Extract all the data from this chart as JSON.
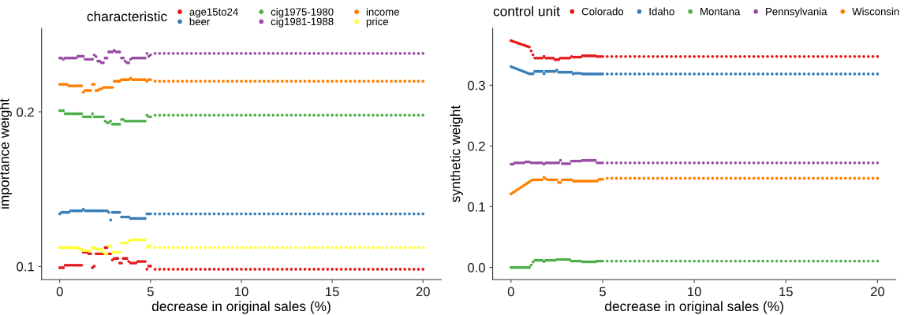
{
  "chart_data": [
    {
      "type": "scatter",
      "xlabel": "decrease in original sales (%)",
      "ylabel": "importance weight",
      "legend_title": "characteristic",
      "legend": "top",
      "marker": "circle",
      "xlim": [
        -1,
        21
      ],
      "ylim": [
        0.0915,
        0.254
      ],
      "xticks": [
        0,
        5,
        10,
        15,
        20
      ],
      "yticks": [
        0.1,
        0.2
      ],
      "x": [
        0,
        0.1,
        0.2,
        0.3,
        0.4,
        0.5,
        0.6,
        0.7,
        0.8,
        0.9,
        1,
        1.1,
        1.2,
        1.3,
        1.4,
        1.5,
        1.6,
        1.7,
        1.8,
        1.9,
        2,
        2.1,
        2.2,
        2.3,
        2.4,
        2.5,
        2.6,
        2.7,
        2.8,
        2.9,
        3,
        3.1,
        3.2,
        3.3,
        3.4,
        3.5,
        3.6,
        3.7,
        3.8,
        3.9,
        4,
        4.1,
        4.2,
        4.3,
        4.4,
        4.5,
        4.6,
        4.7,
        4.8,
        4.9,
        5,
        5.25,
        5.5,
        5.75,
        6,
        6.25,
        6.5,
        6.75,
        7,
        7.25,
        7.5,
        7.75,
        8,
        8.25,
        8.5,
        8.75,
        9,
        9.25,
        9.5,
        9.75,
        10,
        10.25,
        10.5,
        10.75,
        11,
        11.25,
        11.5,
        11.75,
        12,
        12.25,
        12.5,
        12.75,
        13,
        13.25,
        13.5,
        13.75,
        14,
        14.25,
        14.5,
        14.75,
        15,
        15.25,
        15.5,
        15.75,
        16,
        16.25,
        16.5,
        16.75,
        17,
        17.25,
        17.5,
        17.75,
        18,
        18.25,
        18.5,
        18.75,
        19,
        19.25,
        19.5,
        19.75,
        20
      ],
      "series": [
        {
          "name": "age15to24",
          "color": "#e41a1c",
          "values": [
            0.0992,
            0.0992,
            0.0992,
            0.1008,
            0.1008,
            0.1008,
            0.1008,
            0.1008,
            0.1008,
            0.1008,
            0.1008,
            0.1008,
            0.1008,
            0.1092,
            0.1092,
            0.1092,
            0.1082,
            0.1082,
            0.0992,
            0.1002,
            0.1082,
            0.1082,
            0.1082,
            0.1082,
            0.1082,
            0.1122,
            0.1122,
            0.1082,
            0.1082,
            0.1042,
            0.1052,
            0.1052,
            0.1052,
            0.1022,
            0.1022,
            0.1052,
            0.1052,
            0.1052,
            0.1032,
            0.1022,
            0.1022,
            0.1022,
            0.1022,
            0.1032,
            0.1032,
            0.1032,
            0.1032,
            0.1032,
            0.0982,
            0.1002,
            0.1002,
            0.0982,
            0.0982,
            0.0982,
            0.0982,
            0.0982,
            0.0982,
            0.0982,
            0.0982,
            0.0982,
            0.0982,
            0.0982,
            0.0982,
            0.0982,
            0.0982,
            0.0982,
            0.0982,
            0.0982,
            0.0982,
            0.0982,
            0.0982,
            0.0982,
            0.0982,
            0.0982,
            0.0982,
            0.0982,
            0.0982,
            0.0982,
            0.0982,
            0.0982,
            0.0982,
            0.0982,
            0.0982,
            0.0982,
            0.0982,
            0.0982,
            0.0982,
            0.0982,
            0.0982,
            0.0982,
            0.0982,
            0.0982,
            0.0982,
            0.0982,
            0.0982,
            0.0982,
            0.0982,
            0.0982,
            0.0982,
            0.0982,
            0.0982,
            0.0982,
            0.0982,
            0.0982,
            0.0982,
            0.0982,
            0.0982,
            0.0982,
            0.0982,
            0.0982,
            0.0982
          ]
        },
        {
          "name": "beer",
          "color": "#377eb8",
          "values": [
            0.134,
            0.135,
            0.135,
            0.135,
            0.135,
            0.135,
            0.136,
            0.136,
            0.136,
            0.136,
            0.136,
            0.136,
            0.136,
            0.137,
            0.136,
            0.136,
            0.136,
            0.136,
            0.136,
            0.136,
            0.136,
            0.136,
            0.136,
            0.136,
            0.136,
            0.136,
            0.136,
            0.135,
            0.13,
            0.135,
            0.135,
            0.135,
            0.135,
            0.135,
            0.132,
            0.132,
            0.132,
            0.132,
            0.132,
            0.131,
            0.131,
            0.131,
            0.131,
            0.131,
            0.131,
            0.131,
            0.131,
            0.131,
            0.134,
            0.134,
            0.134,
            0.134,
            0.134,
            0.134,
            0.134,
            0.134,
            0.134,
            0.134,
            0.134,
            0.134,
            0.134,
            0.134,
            0.134,
            0.134,
            0.134,
            0.134,
            0.134,
            0.134,
            0.134,
            0.134,
            0.134,
            0.134,
            0.134,
            0.134,
            0.134,
            0.134,
            0.134,
            0.134,
            0.134,
            0.134,
            0.134,
            0.134,
            0.134,
            0.134,
            0.134,
            0.134,
            0.134,
            0.134,
            0.134,
            0.134,
            0.134,
            0.134,
            0.134,
            0.134,
            0.134,
            0.134,
            0.134,
            0.134,
            0.134,
            0.134,
            0.134,
            0.134,
            0.134,
            0.134,
            0.134,
            0.134,
            0.134,
            0.134,
            0.134,
            0.134,
            0.134
          ]
        },
        {
          "name": "cig1975-1980",
          "color": "#4daf4a",
          "values": [
            0.2008,
            0.2008,
            0.2008,
            0.1988,
            0.1988,
            0.1988,
            0.1988,
            0.1988,
            0.1988,
            0.1988,
            0.1988,
            0.1988,
            0.1988,
            0.1968,
            0.1968,
            0.1968,
            0.1968,
            0.1968,
            0.1988,
            0.1968,
            0.1968,
            0.1968,
            0.1968,
            0.1968,
            0.1968,
            0.194,
            0.193,
            0.193,
            0.194,
            0.192,
            0.192,
            0.192,
            0.192,
            0.192,
            0.195,
            0.195,
            0.194,
            0.194,
            0.194,
            0.194,
            0.194,
            0.194,
            0.194,
            0.194,
            0.194,
            0.194,
            0.194,
            0.194,
            0.1978,
            0.1968,
            0.1968,
            0.1978,
            0.1978,
            0.1978,
            0.1978,
            0.1978,
            0.1978,
            0.1978,
            0.1978,
            0.1978,
            0.1978,
            0.1978,
            0.1978,
            0.1978,
            0.1978,
            0.1978,
            0.1978,
            0.1978,
            0.1978,
            0.1978,
            0.1978,
            0.1978,
            0.1978,
            0.1978,
            0.1978,
            0.1978,
            0.1978,
            0.1978,
            0.1978,
            0.1978,
            0.1978,
            0.1978,
            0.1978,
            0.1978,
            0.1978,
            0.1978,
            0.1978,
            0.1978,
            0.1978,
            0.1978,
            0.1978,
            0.1978,
            0.1978,
            0.1978,
            0.1978,
            0.1978,
            0.1978,
            0.1978,
            0.1978,
            0.1978,
            0.1978,
            0.1978,
            0.1978,
            0.1978,
            0.1978,
            0.1978,
            0.1978,
            0.1978,
            0.1978,
            0.1978,
            0.1978
          ]
        },
        {
          "name": "cig1981-1988",
          "color": "#984ea3",
          "values": [
            0.2348,
            0.2348,
            0.234,
            0.2348,
            0.2348,
            0.2348,
            0.2348,
            0.2348,
            0.2348,
            0.2348,
            0.236,
            0.236,
            0.236,
            0.236,
            0.234,
            0.234,
            0.234,
            0.234,
            0.234,
            0.2368,
            0.2357,
            0.2328,
            0.2328,
            0.2318,
            0.2318,
            0.2348,
            0.2348,
            0.2388,
            0.2388,
            0.2388,
            0.2398,
            0.2388,
            0.2388,
            0.2388,
            0.2348,
            0.2348,
            0.2328,
            0.2318,
            0.2318,
            0.234,
            0.2348,
            0.2348,
            0.2348,
            0.2348,
            0.2348,
            0.2348,
            0.2348,
            0.2348,
            0.2378,
            0.236,
            0.2368,
            0.2378,
            0.2378,
            0.2378,
            0.2378,
            0.2378,
            0.2378,
            0.2378,
            0.2378,
            0.2378,
            0.2378,
            0.2378,
            0.2378,
            0.2378,
            0.2378,
            0.2378,
            0.2378,
            0.2378,
            0.2378,
            0.2378,
            0.2378,
            0.2378,
            0.2378,
            0.2378,
            0.2378,
            0.2378,
            0.2378,
            0.2378,
            0.2378,
            0.2378,
            0.2378,
            0.2378,
            0.2378,
            0.2378,
            0.2378,
            0.2378,
            0.2378,
            0.2378,
            0.2378,
            0.2378,
            0.2378,
            0.2378,
            0.2378,
            0.2378,
            0.2378,
            0.2378,
            0.2378,
            0.2378,
            0.2378,
            0.2378,
            0.2378,
            0.2378,
            0.2378,
            0.2378,
            0.2378,
            0.2378,
            0.2378,
            0.2378,
            0.2378,
            0.2378,
            0.2378
          ]
        },
        {
          "name": "income",
          "color": "#ff7f00",
          "values": [
            0.2178,
            0.2178,
            0.2178,
            0.2178,
            0.2178,
            0.2168,
            0.2168,
            0.2168,
            0.2168,
            0.2168,
            0.2168,
            0.2168,
            0.2168,
            0.2127,
            0.2138,
            0.2138,
            0.2138,
            0.2138,
            0.2178,
            0.2178,
            0.2138,
            0.2138,
            0.2148,
            0.2148,
            0.2158,
            0.2158,
            0.2158,
            0.2158,
            0.2158,
            0.2158,
            0.2198,
            0.2198,
            0.2198,
            0.2198,
            0.2208,
            0.2208,
            0.2208,
            0.2208,
            0.2208,
            0.2218,
            0.2208,
            0.2208,
            0.2208,
            0.2208,
            0.2208,
            0.2208,
            0.2208,
            0.2208,
            0.2198,
            0.2208,
            0.2208,
            0.2198,
            0.2198,
            0.2198,
            0.2198,
            0.2198,
            0.2198,
            0.2198,
            0.2198,
            0.2198,
            0.2198,
            0.2198,
            0.2198,
            0.2198,
            0.2198,
            0.2198,
            0.2198,
            0.2198,
            0.2198,
            0.2198,
            0.2198,
            0.2198,
            0.2198,
            0.2198,
            0.2198,
            0.2198,
            0.2198,
            0.2198,
            0.2198,
            0.2198,
            0.2198,
            0.2198,
            0.2198,
            0.2198,
            0.2198,
            0.2198,
            0.2198,
            0.2198,
            0.2198,
            0.2198,
            0.2198,
            0.2198,
            0.2198,
            0.2198,
            0.2198,
            0.2198,
            0.2198,
            0.2198,
            0.2198,
            0.2198,
            0.2198,
            0.2198,
            0.2198,
            0.2198,
            0.2198,
            0.2198,
            0.2198,
            0.2198,
            0.2198,
            0.2198,
            0.2198
          ]
        },
        {
          "name": "price",
          "color": "#ffff33",
          "values": [
            0.1122,
            0.1122,
            0.1122,
            0.1122,
            0.1122,
            0.1122,
            0.1122,
            0.1122,
            0.1122,
            0.1122,
            0.1122,
            0.1112,
            0.1112,
            0.1102,
            0.1102,
            0.1102,
            0.1102,
            0.1102,
            0.1122,
            0.1122,
            0.1112,
            0.1112,
            0.1112,
            0.1112,
            0.1092,
            0.1082,
            0.1082,
            0.1132,
            0.1132,
            0.1092,
            0.1092,
            0.1092,
            0.1092,
            0.1092,
            0.1152,
            0.1152,
            0.1152,
            0.1152,
            0.1162,
            0.1172,
            0.1172,
            0.1172,
            0.1172,
            0.1172,
            0.1172,
            0.1172,
            0.1172,
            0.1172,
            0.1122,
            0.1132,
            0.1132,
            0.1122,
            0.1122,
            0.1122,
            0.1122,
            0.1122,
            0.1122,
            0.1122,
            0.1122,
            0.1122,
            0.1122,
            0.1122,
            0.1122,
            0.1122,
            0.1122,
            0.1122,
            0.1122,
            0.1122,
            0.1122,
            0.1122,
            0.1122,
            0.1122,
            0.1122,
            0.1122,
            0.1122,
            0.1122,
            0.1122,
            0.1122,
            0.1122,
            0.1122,
            0.1122,
            0.1122,
            0.1122,
            0.1122,
            0.1122,
            0.1122,
            0.1122,
            0.1122,
            0.1122,
            0.1122,
            0.1122,
            0.1122,
            0.1122,
            0.1122,
            0.1122,
            0.1122,
            0.1122,
            0.1122,
            0.1122,
            0.1122,
            0.1122,
            0.1122,
            0.1122,
            0.1122,
            0.1122,
            0.1122,
            0.1122,
            0.1122,
            0.1122,
            0.1122,
            0.1122
          ]
        }
      ]
    },
    {
      "type": "scatter",
      "xlabel": "decrease in original sales (%)",
      "ylabel": "synthetic weight",
      "legend_title": "control unit",
      "legend": "top",
      "marker": "circle",
      "xlim": [
        -1,
        21
      ],
      "ylim": [
        -0.02,
        0.3937
      ],
      "xticks": [
        0,
        5,
        10,
        15,
        20
      ],
      "yticks": [
        {
          "value": 0,
          "label": "0.0"
        },
        0.1,
        0.2,
        0.3
      ],
      "x": [
        0,
        0.1,
        0.2,
        0.3,
        0.4,
        0.5,
        0.6,
        0.7,
        0.8,
        0.9,
        1,
        1.1,
        1.2,
        1.3,
        1.4,
        1.5,
        1.6,
        1.7,
        1.8,
        1.9,
        2,
        2.1,
        2.2,
        2.3,
        2.4,
        2.5,
        2.6,
        2.7,
        2.8,
        2.9,
        3,
        3.1,
        3.2,
        3.3,
        3.4,
        3.5,
        3.6,
        3.7,
        3.8,
        3.9,
        4,
        4.1,
        4.2,
        4.3,
        4.4,
        4.5,
        4.6,
        4.7,
        4.8,
        4.9,
        5,
        5.25,
        5.5,
        5.75,
        6,
        6.25,
        6.5,
        6.75,
        7,
        7.25,
        7.5,
        7.75,
        8,
        8.25,
        8.5,
        8.75,
        9,
        9.25,
        9.5,
        9.75,
        10,
        10.25,
        10.5,
        10.75,
        11,
        11.25,
        11.5,
        11.75,
        12,
        12.25,
        12.5,
        12.75,
        13,
        13.25,
        13.5,
        13.75,
        14,
        14.25,
        14.5,
        14.75,
        15,
        15.25,
        15.5,
        15.75,
        16,
        16.25,
        16.5,
        16.75,
        17,
        17.25,
        17.5,
        17.75,
        18,
        18.25,
        18.5,
        18.75,
        19,
        19.25,
        19.5,
        19.75,
        20
      ],
      "series": [
        {
          "name": "Colorado",
          "color": "#e41a1c",
          "values": [
            0.3734,
            0.3724,
            0.3713,
            0.3703,
            0.3692,
            0.3682,
            0.3671,
            0.3661,
            0.365,
            0.364,
            0.3629,
            0.3566,
            0.3502,
            0.3447,
            0.3447,
            0.3447,
            0.3447,
            0.3447,
            0.3477,
            0.3447,
            0.3447,
            0.3447,
            0.3447,
            0.3447,
            0.3422,
            0.3422,
            0.3422,
            0.3447,
            0.3447,
            0.3447,
            0.3447,
            0.3447,
            0.3447,
            0.3473,
            0.3464,
            0.3464,
            0.3464,
            0.3464,
            0.3464,
            0.3485,
            0.3485,
            0.3485,
            0.3485,
            0.3485,
            0.3485,
            0.3485,
            0.3485,
            0.3473,
            0.3473,
            0.3473,
            0.3473,
            0.3473,
            0.3473,
            0.3473,
            0.3473,
            0.3473,
            0.3473,
            0.3473,
            0.3473,
            0.3473,
            0.3473,
            0.3473,
            0.3473,
            0.3473,
            0.3473,
            0.3473,
            0.3473,
            0.3473,
            0.3473,
            0.3473,
            0.3473,
            0.3473,
            0.3473,
            0.3473,
            0.3473,
            0.3473,
            0.3473,
            0.3473,
            0.3473,
            0.3473,
            0.3473,
            0.3473,
            0.3473,
            0.3473,
            0.3473,
            0.3473,
            0.3473,
            0.3473,
            0.3473,
            0.3473,
            0.3473,
            0.3473,
            0.3473,
            0.3473,
            0.3473,
            0.3473,
            0.3473,
            0.3473,
            0.3473,
            0.3473,
            0.3473,
            0.3473,
            0.3473,
            0.3473,
            0.3473,
            0.3473,
            0.3473,
            0.3473,
            0.3473,
            0.3473,
            0.3473
          ]
        },
        {
          "name": "Idaho",
          "color": "#377eb8",
          "values": [
            0.3307,
            0.3295,
            0.3284,
            0.3272,
            0.326,
            0.3249,
            0.3237,
            0.3225,
            0.3214,
            0.3202,
            0.319,
            0.319,
            0.319,
            0.3228,
            0.3228,
            0.3228,
            0.3228,
            0.3228,
            0.319,
            0.3228,
            0.3228,
            0.3228,
            0.3228,
            0.3228,
            0.3228,
            0.3249,
            0.3215,
            0.3215,
            0.3215,
            0.3215,
            0.3215,
            0.3215,
            0.3215,
            0.3215,
            0.3186,
            0.3198,
            0.3198,
            0.3198,
            0.3198,
            0.3186,
            0.3186,
            0.3186,
            0.3186,
            0.3186,
            0.3186,
            0.3186,
            0.3186,
            0.3186,
            0.3186,
            0.3186,
            0.3186,
            0.3186,
            0.3186,
            0.3186,
            0.3186,
            0.3186,
            0.3186,
            0.3186,
            0.3186,
            0.3186,
            0.3186,
            0.3186,
            0.3186,
            0.3186,
            0.3186,
            0.3186,
            0.3186,
            0.3186,
            0.3186,
            0.3186,
            0.3186,
            0.3186,
            0.3186,
            0.3186,
            0.3186,
            0.3186,
            0.3186,
            0.3186,
            0.3186,
            0.3186,
            0.3186,
            0.3186,
            0.3186,
            0.3186,
            0.3186,
            0.3186,
            0.3186,
            0.3186,
            0.3186,
            0.3186,
            0.3186,
            0.3186,
            0.3186,
            0.3186,
            0.3186,
            0.3186,
            0.3186,
            0.3186,
            0.3186,
            0.3186,
            0.3186,
            0.3186,
            0.3186,
            0.3186,
            0.3186,
            0.3186,
            0.3186,
            0.3186,
            0.3186,
            0.3186,
            0.3186
          ]
        },
        {
          "name": "Montana",
          "color": "#4daf4a",
          "values": [
            0,
            0,
            0,
            0,
            0,
            0,
            0,
            0,
            0,
            0,
            0,
            0.004,
            0.0089,
            0.0118,
            0.0118,
            0.0118,
            0.0118,
            0.0118,
            0.0097,
            0.0118,
            0.0118,
            0.0118,
            0.0118,
            0.0118,
            0.0118,
            0.0131,
            0.0131,
            0.0131,
            0.0131,
            0.0131,
            0.0131,
            0.0131,
            0.0131,
            0.0105,
            0.0105,
            0.0105,
            0.0105,
            0.0105,
            0.0105,
            0.0093,
            0.0093,
            0.0093,
            0.0093,
            0.0093,
            0.0093,
            0.0093,
            0.0093,
            0.0105,
            0.0105,
            0.0105,
            0.0105,
            0.0105,
            0.0105,
            0.0105,
            0.0105,
            0.0105,
            0.0105,
            0.0105,
            0.0105,
            0.0105,
            0.0105,
            0.0105,
            0.0105,
            0.0105,
            0.0105,
            0.0105,
            0.0105,
            0.0105,
            0.0105,
            0.0105,
            0.0105,
            0.0105,
            0.0105,
            0.0105,
            0.0105,
            0.0105,
            0.0105,
            0.0105,
            0.0105,
            0.0105,
            0.0105,
            0.0105,
            0.0105,
            0.0105,
            0.0105,
            0.0105,
            0.0105,
            0.0105,
            0.0105,
            0.0105,
            0.0105,
            0.0105,
            0.0105,
            0.0105,
            0.0105,
            0.0105,
            0.0105,
            0.0105,
            0.0105,
            0.0105,
            0.0105,
            0.0105,
            0.0105,
            0.0105,
            0.0105,
            0.0105,
            0.0105,
            0.0105,
            0.0105,
            0.0105,
            0.0105
          ]
        },
        {
          "name": "Pennsylvania",
          "color": "#984ea3",
          "values": [
            0.17,
            0.17,
            0.1722,
            0.1722,
            0.1722,
            0.1722,
            0.1722,
            0.1722,
            0.1738,
            0.1738,
            0.1738,
            0.1722,
            0.1722,
            0.1722,
            0.1722,
            0.1722,
            0.1722,
            0.1722,
            0.17,
            0.1722,
            0.1722,
            0.1722,
            0.1722,
            0.1722,
            0.1722,
            0.1722,
            0.1722,
            0.1763,
            0.1709,
            0.1709,
            0.1709,
            0.1709,
            0.1709,
            0.1751,
            0.1751,
            0.1751,
            0.1751,
            0.1751,
            0.1751,
            0.1763,
            0.1763,
            0.1763,
            0.1763,
            0.1763,
            0.1763,
            0.1763,
            0.1763,
            0.1722,
            0.1722,
            0.1722,
            0.1722,
            0.1722,
            0.1722,
            0.1722,
            0.1722,
            0.1722,
            0.1722,
            0.1722,
            0.1722,
            0.1722,
            0.1722,
            0.1722,
            0.1722,
            0.1722,
            0.1722,
            0.1722,
            0.1722,
            0.1722,
            0.1722,
            0.1722,
            0.1722,
            0.1722,
            0.1722,
            0.1722,
            0.1722,
            0.1722,
            0.1722,
            0.1722,
            0.1722,
            0.1722,
            0.1722,
            0.1722,
            0.1722,
            0.1722,
            0.1722,
            0.1722,
            0.1722,
            0.1722,
            0.1722,
            0.1722,
            0.1722,
            0.1722,
            0.1722,
            0.1722,
            0.1722,
            0.1722,
            0.1722,
            0.1722,
            0.1722,
            0.1722,
            0.1722,
            0.1722,
            0.1722,
            0.1722,
            0.1722,
            0.1722,
            0.1722,
            0.1722,
            0.1722,
            0.1722,
            0.1722
          ]
        },
        {
          "name": "Wisconsin",
          "color": "#ff7f00",
          "values": [
            0.1211,
            0.1231,
            0.1251,
            0.1271,
            0.1291,
            0.1311,
            0.133,
            0.135,
            0.137,
            0.139,
            0.141,
            0.143,
            0.1443,
            0.1443,
            0.1443,
            0.1443,
            0.1443,
            0.1443,
            0.1485,
            0.146,
            0.1443,
            0.1443,
            0.1443,
            0.1443,
            0.1443,
            0.1443,
            0.14,
            0.14,
            0.1443,
            0.1443,
            0.1443,
            0.1443,
            0.1443,
            0.1443,
            0.1422,
            0.1422,
            0.1422,
            0.1422,
            0.1422,
            0.1422,
            0.1422,
            0.1422,
            0.1422,
            0.1422,
            0.1422,
            0.1422,
            0.1422,
            0.1422,
            0.1451,
            0.1451,
            0.1451,
            0.1468,
            0.1468,
            0.1468,
            0.1468,
            0.1468,
            0.1468,
            0.1468,
            0.1468,
            0.1468,
            0.1468,
            0.1468,
            0.1468,
            0.1468,
            0.1468,
            0.1468,
            0.1468,
            0.1468,
            0.1468,
            0.1468,
            0.1468,
            0.1468,
            0.1468,
            0.1468,
            0.1468,
            0.1468,
            0.1468,
            0.1468,
            0.1468,
            0.1468,
            0.1468,
            0.1468,
            0.1468,
            0.1468,
            0.1468,
            0.1468,
            0.1468,
            0.1468,
            0.1468,
            0.1468,
            0.1468,
            0.1468,
            0.1468,
            0.1468,
            0.1468,
            0.1468,
            0.1468,
            0.1468,
            0.1468,
            0.1468,
            0.1468,
            0.1468,
            0.1468,
            0.1468,
            0.1468,
            0.1468,
            0.1468,
            0.1468,
            0.1468,
            0.1468,
            0.1468
          ]
        }
      ]
    }
  ]
}
